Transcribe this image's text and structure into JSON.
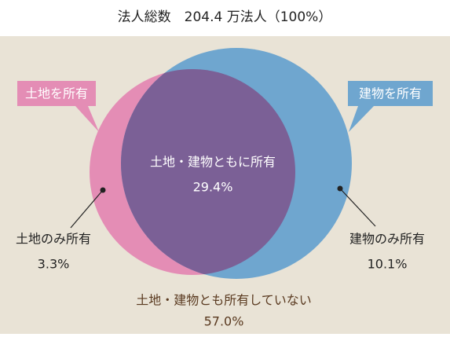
{
  "chart_data": {
    "type": "venn",
    "title": "法人総数　204.4 万法人（100%）",
    "sets": [
      {
        "name": "土地を所有",
        "color": "#e48db5"
      },
      {
        "name": "建物を所有",
        "color": "#6fa6cf"
      }
    ],
    "overlap_color": "#7b6096",
    "background": "#e9e3d6",
    "categories": [
      "土地のみ所有",
      "土地・建物ともに所有",
      "建物のみ所有",
      "土地・建物とも所有していない"
    ],
    "values": [
      3.3,
      29.4,
      10.1,
      57.0
    ],
    "value_labels": [
      "3.3%",
      "29.4%",
      "10.1%",
      "57.0%"
    ]
  }
}
